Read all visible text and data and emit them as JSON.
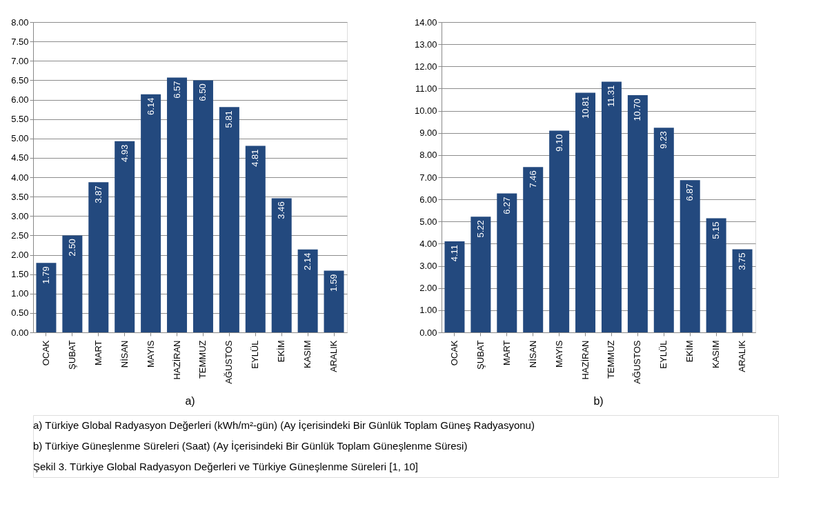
{
  "chart_data": [
    {
      "type": "bar",
      "categories": [
        "OCAK",
        "ŞUBAT",
        "MART",
        "NİSAN",
        "MAYIS",
        "HAZİRAN",
        "TEMMUZ",
        "AĞUSTOS",
        "EYLÜL",
        "EKİM",
        "KASIM",
        "ARALIK"
      ],
      "series": [
        {
          "color": "#23497e",
          "values": [
            1.79,
            2.5,
            3.87,
            4.93,
            6.14,
            6.57,
            6.5,
            5.81,
            4.81,
            3.46,
            2.14,
            1.59
          ],
          "value_labels": [
            "1.79",
            "2.50",
            "3.87",
            "4.93",
            "6.14",
            "6.57",
            "6.50",
            "5.81",
            "4.81",
            "3.46",
            "2.14",
            "1.59"
          ]
        }
      ],
      "ylim": [
        0,
        8
      ],
      "yticks": [
        {
          "value": 0,
          "label": "0.00"
        },
        {
          "value": 0.5,
          "label": "0.50"
        },
        {
          "value": 1,
          "label": "1.00"
        },
        {
          "value": 1.5,
          "label": "1.50"
        },
        {
          "value": 2,
          "label": "2.00"
        },
        {
          "value": 2.5,
          "label": "2.50"
        },
        {
          "value": 3,
          "label": "3.00"
        },
        {
          "value": 3.5,
          "label": "3.50"
        },
        {
          "value": 4,
          "label": "4.00"
        },
        {
          "value": 4.5,
          "label": "4.50"
        },
        {
          "value": 5,
          "label": "5.00"
        },
        {
          "value": 5.5,
          "label": "5.50"
        },
        {
          "value": 6,
          "label": "6.00"
        },
        {
          "value": 6.5,
          "label": "6.50"
        },
        {
          "value": 7,
          "label": "7.00"
        },
        {
          "value": 7.5,
          "label": "7.50"
        },
        {
          "value": 8,
          "label": "8.00"
        }
      ],
      "grid": "y",
      "annotations": [
        "a)",
        "a) Türkiye Global Radyasyon Değerleri (kWh/m²-gün) (Ay İçerisindeki Bir Günlük Toplam Güneş Radyasyonu)"
      ]
    },
    {
      "type": "bar",
      "categories": [
        "OCAK",
        "ŞUBAT",
        "MART",
        "NİSAN",
        "MAYIS",
        "HAZİRAN",
        "TEMMUZ",
        "AĞUSTOS",
        "EYLÜL",
        "EKİM",
        "KASIM",
        "ARALIK"
      ],
      "series": [
        {
          "color": "#23497e",
          "values": [
            4.11,
            5.22,
            6.27,
            7.46,
            9.1,
            10.81,
            11.31,
            10.7,
            9.23,
            6.87,
            5.15,
            3.75
          ],
          "value_labels": [
            "4.11",
            "5.22",
            "6.27",
            "7.46",
            "9.10",
            "10.81",
            "11.31",
            "10.70",
            "9.23",
            "6.87",
            "5.15",
            "3.75"
          ]
        }
      ],
      "ylim": [
        0,
        14
      ],
      "yticks": [
        {
          "value": 0,
          "label": "0.00"
        },
        {
          "value": 1,
          "label": "1.00"
        },
        {
          "value": 2,
          "label": "2.00"
        },
        {
          "value": 3,
          "label": "3.00"
        },
        {
          "value": 4,
          "label": "4.00"
        },
        {
          "value": 5,
          "label": "5.00"
        },
        {
          "value": 6,
          "label": "6.00"
        },
        {
          "value": 7,
          "label": "7.00"
        },
        {
          "value": 8,
          "label": "8.00"
        },
        {
          "value": 9,
          "label": "9.00"
        },
        {
          "value": 10,
          "label": "10.00"
        },
        {
          "value": 11,
          "label": "11.00"
        },
        {
          "value": 12,
          "label": "12.00"
        },
        {
          "value": 13,
          "label": "13.00"
        },
        {
          "value": 14,
          "label": "14.00"
        }
      ],
      "grid": "y",
      "annotations": [
        "b)",
        "b) Türkiye Güneşlenme Süreleri (Saat) (Ay İçerisindeki Bir Günlük Toplam Güneşlenme Süresi)",
        "Şekil 3. Türkiye Global Radyasyon Değerleri ve Türkiye Güneşlenme Süreleri [1, 10]"
      ]
    }
  ]
}
